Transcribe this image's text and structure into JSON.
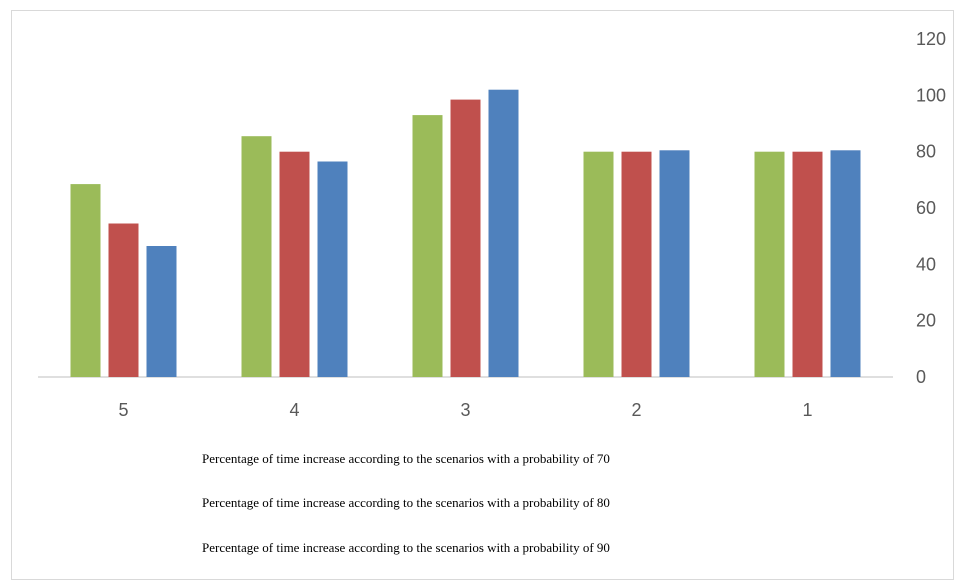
{
  "chart_data": {
    "type": "bar",
    "categories": [
      "5",
      "4",
      "3",
      "2",
      "1"
    ],
    "series": [
      {
        "name": "Percentage of time increase according to the scenarios with a probability of 70",
        "color": "#9BBB59",
        "values": [
          68.5,
          85.5,
          93,
          80,
          80
        ]
      },
      {
        "name": "Percentage of time increase according to the scenarios with a probability of 80",
        "color": "#C0504D",
        "values": [
          54.5,
          80,
          98.5,
          80,
          80
        ]
      },
      {
        "name": "Percentage of time increase according to the scenarios with a probability of 90",
        "color": "#4F81BD",
        "values": [
          46.5,
          76.5,
          102,
          80.5,
          80.5
        ]
      }
    ],
    "yticks": [
      "0",
      "20",
      "40",
      "60",
      "80",
      "100",
      "120"
    ],
    "ylim": [
      0,
      120
    ],
    "y_axis_side": "right",
    "grid": false,
    "legend_position": "bottom"
  }
}
